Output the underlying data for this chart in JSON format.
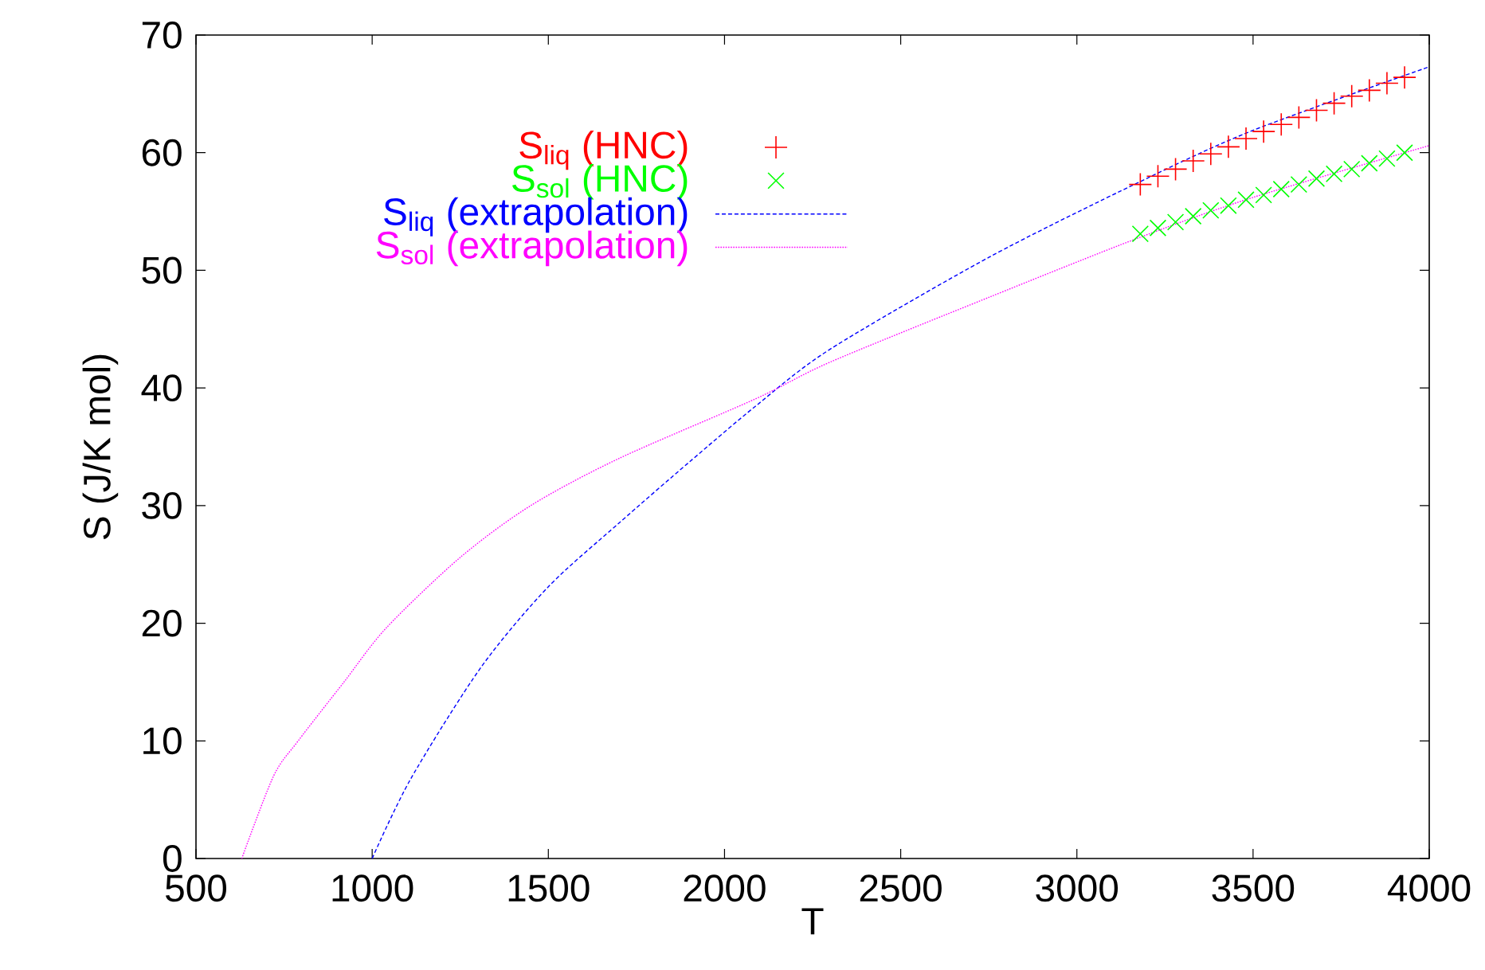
{
  "chart_data": {
    "type": "scatter",
    "xlabel": "T",
    "ylabel": "S (J/K mol)",
    "xlim": [
      500,
      4000
    ],
    "ylim": [
      0,
      70
    ],
    "xticks": [
      500,
      1000,
      1500,
      2000,
      2500,
      3000,
      3500,
      4000
    ],
    "yticks": [
      0,
      10,
      20,
      30,
      40,
      50,
      60,
      70
    ],
    "legend": "top left",
    "series": [
      {
        "name": "S$_{liq}$ (HNC)",
        "marker": "plus",
        "color": "#ff0000",
        "x": [
          3180,
          3230,
          3280,
          3330,
          3380,
          3430,
          3480,
          3530,
          3580,
          3630,
          3680,
          3730,
          3780,
          3830,
          3880,
          3930
        ],
        "values": [
          57.3,
          58.0,
          58.6,
          59.3,
          59.9,
          60.5,
          61.2,
          61.8,
          62.4,
          63.0,
          63.6,
          64.2,
          64.8,
          65.3,
          65.9,
          66.4
        ]
      },
      {
        "name": "S$_{sol}$ (HNC)",
        "marker": "cross",
        "color": "#00ff00",
        "x": [
          3180,
          3230,
          3280,
          3330,
          3380,
          3430,
          3480,
          3530,
          3580,
          3630,
          3680,
          3730,
          3780,
          3830,
          3880,
          3930
        ],
        "values": [
          53.1,
          53.6,
          54.1,
          54.6,
          55.1,
          55.5,
          56.0,
          56.4,
          56.9,
          57.3,
          57.8,
          58.2,
          58.6,
          59.1,
          59.5,
          60.0
        ]
      },
      {
        "name": "S$_{liq}$ (extrapolation)",
        "type": "line",
        "line_style": "dashed",
        "color": "#0000ff",
        "x": [
          1000,
          1110,
          1310,
          1500,
          1700,
          1900,
          2090,
          2300,
          2750,
          3170,
          3500,
          4000
        ],
        "values": [
          0,
          6.8,
          16.3,
          23.1,
          28.5,
          33.7,
          38.5,
          43.3,
          51.1,
          57.4,
          61.9,
          67.3
        ]
      },
      {
        "name": "S$_{sol}$ (extrapolation)",
        "type": "line",
        "line_style": "dotted",
        "color": "#ff00ff",
        "x": [
          630,
          720,
          790,
          920,
          1040,
          1250,
          1450,
          1700,
          2090,
          2300,
          2750,
          3170,
          3500,
          4000
        ],
        "values": [
          0,
          7,
          10,
          15,
          19.6,
          25.6,
          30,
          34,
          39.1,
          42.2,
          47.7,
          52.7,
          56.2,
          60.6
        ]
      }
    ]
  }
}
